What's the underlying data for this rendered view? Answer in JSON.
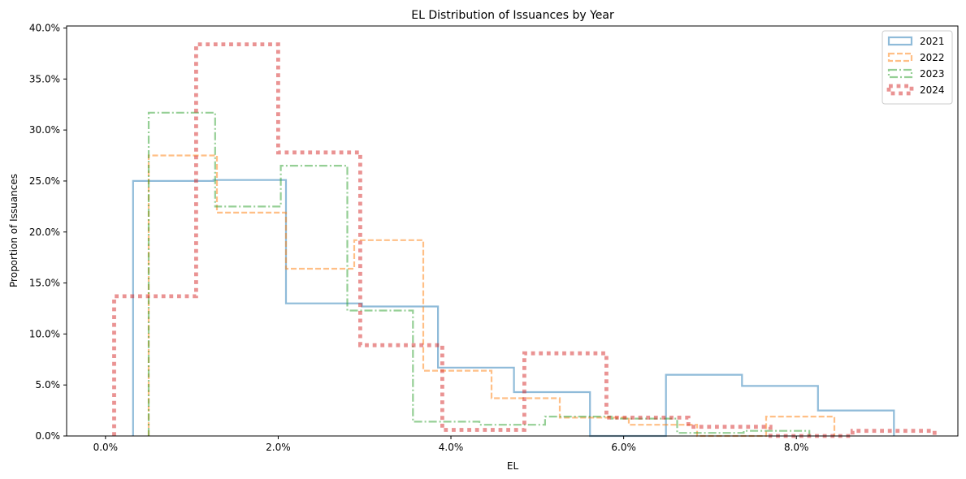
{
  "chart_data": {
    "type": "histogram-step",
    "title": "EL Distribution of Issuances by Year",
    "xlabel": "EL",
    "ylabel": "Proportion of Issuances",
    "xlim": [
      -0.0045,
      0.0987
    ],
    "ylim": [
      0,
      0.402
    ],
    "xticks": [
      0.0,
      0.02,
      0.04,
      0.06,
      0.08
    ],
    "xtick_labels": [
      "0.0%",
      "2.0%",
      "4.0%",
      "6.0%",
      "8.0%"
    ],
    "yticks": [
      0.0,
      0.05,
      0.1,
      0.15,
      0.2,
      0.25,
      0.3,
      0.35,
      0.4
    ],
    "ytick_labels": [
      "0.0%",
      "5.0%",
      "10.0%",
      "15.0%",
      "20.0%",
      "25.0%",
      "30.0%",
      "35.0%",
      "40.0%"
    ],
    "legend": {
      "position": "top-right",
      "entries": [
        "2021",
        "2022",
        "2023",
        "2024"
      ]
    },
    "grid": false,
    "series": [
      {
        "name": "2021",
        "color": "#1f77b4",
        "line_style": "solid",
        "bins": [
          {
            "x0": 0.0032,
            "x1": 0.0125,
            "y": 0.25
          },
          {
            "x0": 0.0125,
            "x1": 0.0209,
            "y": 0.251
          },
          {
            "x0": 0.0209,
            "x1": 0.0297,
            "y": 0.13
          },
          {
            "x0": 0.0297,
            "x1": 0.0385,
            "y": 0.127
          },
          {
            "x0": 0.0385,
            "x1": 0.0473,
            "y": 0.067
          },
          {
            "x0": 0.0473,
            "x1": 0.0561,
            "y": 0.043
          },
          {
            "x0": 0.0561,
            "x1": 0.0649,
            "y": 0.0
          },
          {
            "x0": 0.0649,
            "x1": 0.0737,
            "y": 0.06
          },
          {
            "x0": 0.0737,
            "x1": 0.0825,
            "y": 0.049
          },
          {
            "x0": 0.0825,
            "x1": 0.0913,
            "y": 0.025
          }
        ]
      },
      {
        "name": "2022",
        "color": "#ff7f0e",
        "line_style": "dashed",
        "bins": [
          {
            "x0": 0.005,
            "x1": 0.0129,
            "y": 0.275
          },
          {
            "x0": 0.0129,
            "x1": 0.0209,
            "y": 0.219
          },
          {
            "x0": 0.0209,
            "x1": 0.0288,
            "y": 0.164
          },
          {
            "x0": 0.0288,
            "x1": 0.0368,
            "y": 0.192
          },
          {
            "x0": 0.0368,
            "x1": 0.0447,
            "y": 0.064
          },
          {
            "x0": 0.0447,
            "x1": 0.0526,
            "y": 0.037
          },
          {
            "x0": 0.0526,
            "x1": 0.0606,
            "y": 0.018
          },
          {
            "x0": 0.0606,
            "x1": 0.0685,
            "y": 0.011
          },
          {
            "x0": 0.0685,
            "x1": 0.0765,
            "y": 0.0
          },
          {
            "x0": 0.0765,
            "x1": 0.0844,
            "y": 0.019
          }
        ]
      },
      {
        "name": "2023",
        "color": "#2ca02c",
        "line_style": "dashdot",
        "bins": [
          {
            "x0": 0.005,
            "x1": 0.0127,
            "y": 0.317
          },
          {
            "x0": 0.0127,
            "x1": 0.0203,
            "y": 0.225
          },
          {
            "x0": 0.0203,
            "x1": 0.028,
            "y": 0.265
          },
          {
            "x0": 0.028,
            "x1": 0.0356,
            "y": 0.123
          },
          {
            "x0": 0.0356,
            "x1": 0.0433,
            "y": 0.014
          },
          {
            "x0": 0.0433,
            "x1": 0.0509,
            "y": 0.011
          },
          {
            "x0": 0.0509,
            "x1": 0.0586,
            "y": 0.019
          },
          {
            "x0": 0.0586,
            "x1": 0.0662,
            "y": 0.017
          },
          {
            "x0": 0.0662,
            "x1": 0.0739,
            "y": 0.003
          },
          {
            "x0": 0.0739,
            "x1": 0.0815,
            "y": 0.005
          }
        ]
      },
      {
        "name": "2024",
        "color": "#d62728",
        "line_style": "dotted",
        "bins": [
          {
            "x0": 0.001,
            "x1": 0.0105,
            "y": 0.137
          },
          {
            "x0": 0.0105,
            "x1": 0.02,
            "y": 0.384
          },
          {
            "x0": 0.02,
            "x1": 0.0295,
            "y": 0.278
          },
          {
            "x0": 0.0295,
            "x1": 0.039,
            "y": 0.089
          },
          {
            "x0": 0.039,
            "x1": 0.0485,
            "y": 0.006
          },
          {
            "x0": 0.0485,
            "x1": 0.058,
            "y": 0.081
          },
          {
            "x0": 0.058,
            "x1": 0.0675,
            "y": 0.018
          },
          {
            "x0": 0.0675,
            "x1": 0.077,
            "y": 0.009
          },
          {
            "x0": 0.077,
            "x1": 0.0865,
            "y": 0.0
          },
          {
            "x0": 0.0865,
            "x1": 0.096,
            "y": 0.005
          }
        ]
      }
    ]
  }
}
